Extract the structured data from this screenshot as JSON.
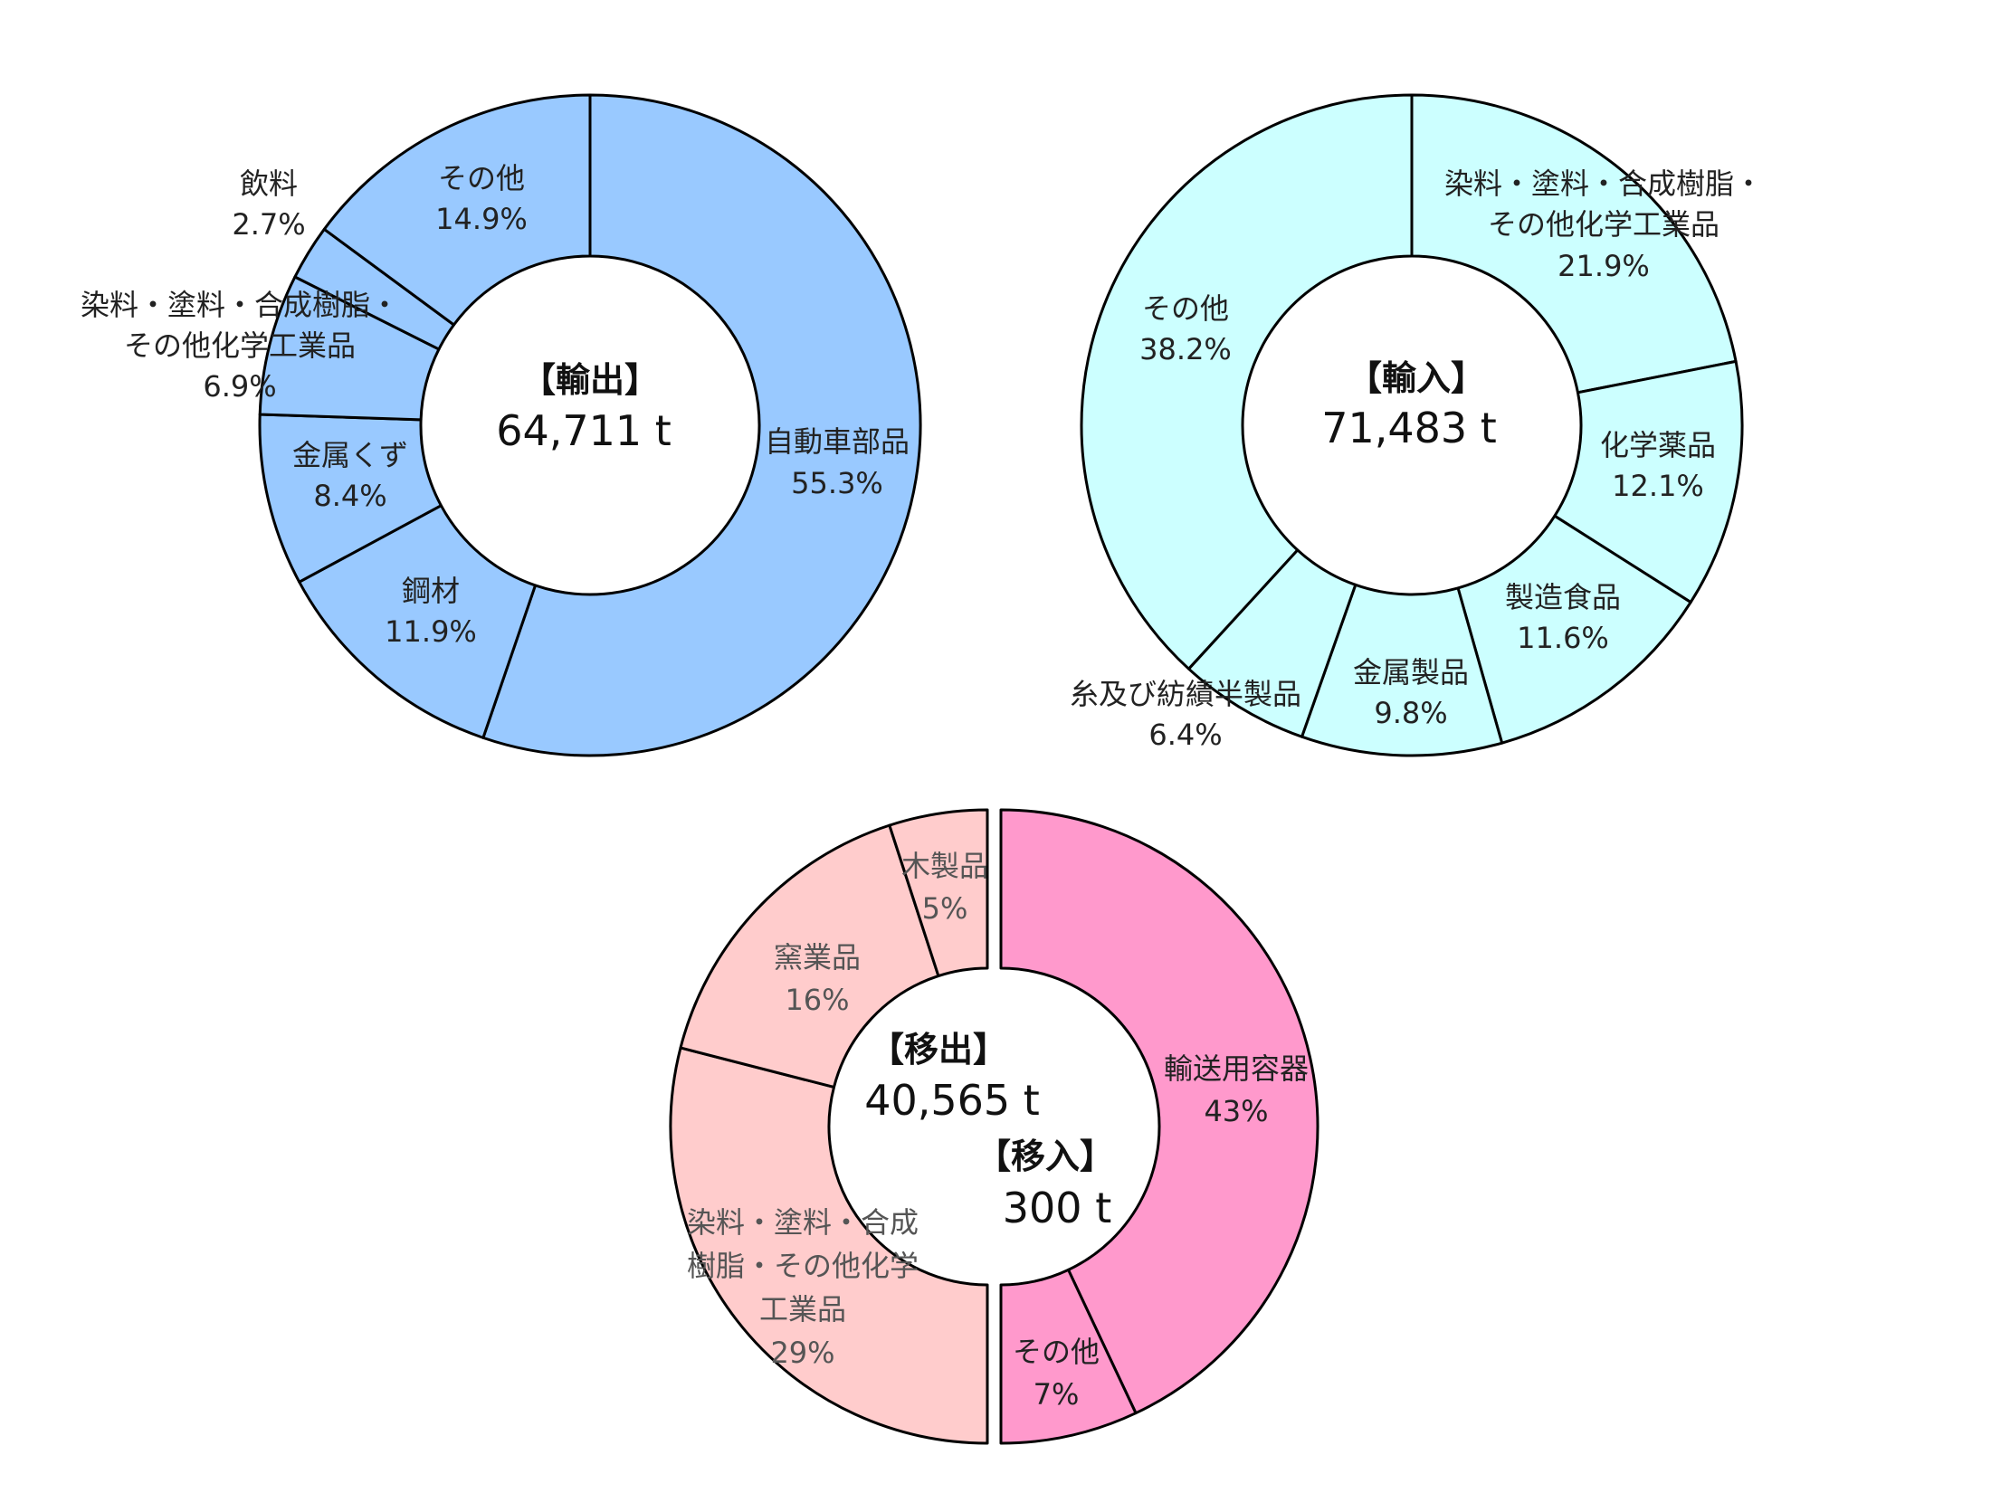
{
  "chart_data": [
    {
      "type": "pie",
      "style": "donut",
      "center": {
        "title": "【輸出】",
        "value": "64,711 t"
      },
      "colors": {
        "fill": "#99c9ff",
        "stroke": "#000000"
      },
      "slices": [
        {
          "label": "自動車部品",
          "percent_text": "55.3%",
          "value": 55.3
        },
        {
          "label": "鋼材",
          "percent_text": "11.9%",
          "value": 11.9
        },
        {
          "label": "金属くず",
          "percent_text": "8.4%",
          "value": 8.4
        },
        {
          "label": "染料・塗料・合成樹脂・その他化学工業品",
          "label_lines": [
            "染料・塗料・合成樹脂・",
            "その他化学工業品"
          ],
          "percent_text": "6.9%",
          "value": 6.9
        },
        {
          "label": "飲料",
          "percent_text": "2.7%",
          "value": 2.7
        },
        {
          "label": "その他",
          "percent_text": "14.9%",
          "value": 14.9
        }
      ]
    },
    {
      "type": "pie",
      "style": "donut",
      "center": {
        "title": "【輸入】",
        "value": "71,483 t"
      },
      "colors": {
        "fill": "#ccffff",
        "stroke": "#000000"
      },
      "slices": [
        {
          "label": "染料・塗料・合成樹脂・その他化学工業品",
          "label_lines": [
            "染料・塗料・合成樹脂・",
            "その他化学工業品"
          ],
          "percent_text": "21.9%",
          "value": 21.9
        },
        {
          "label": "化学薬品",
          "percent_text": "12.1%",
          "value": 12.1
        },
        {
          "label": "製造食品",
          "percent_text": "11.6%",
          "value": 11.6
        },
        {
          "label": "金属製品",
          "percent_text": "9.8%",
          "value": 9.8
        },
        {
          "label": "糸及び紡績半製品",
          "percent_text": "6.4%",
          "value": 6.4
        },
        {
          "label": "その他",
          "percent_text": "38.2%",
          "value": 38.2
        }
      ]
    },
    {
      "type": "pie",
      "style": "split-donut",
      "center": {
        "title": "【移出】",
        "value": "40,565 t",
        "title2": "【移入】",
        "value2": "300 t"
      },
      "halves": [
        {
          "side": "right",
          "colors": {
            "fill": "#ff99cc",
            "stroke": "#000000"
          },
          "slices": [
            {
              "label": "輸送用容器",
              "percent_text": "43%",
              "value": 43
            },
            {
              "label": "その他",
              "percent_text": "7%",
              "value": 7
            }
          ]
        },
        {
          "side": "left",
          "colors": {
            "fill": "#ffcccc",
            "stroke": "#000000"
          },
          "slices": [
            {
              "label": "染料・塗料・合成樹脂・その他化学工業品",
              "label_lines": [
                "染料・塗料・合成",
                "樹脂・その他化学",
                "工業品"
              ],
              "percent_text": "29%",
              "value": 29
            },
            {
              "label": "窯業品",
              "percent_text": "16%",
              "value": 16
            },
            {
              "label": "木製品",
              "percent_text": "5%",
              "value": 5
            }
          ]
        }
      ]
    }
  ]
}
